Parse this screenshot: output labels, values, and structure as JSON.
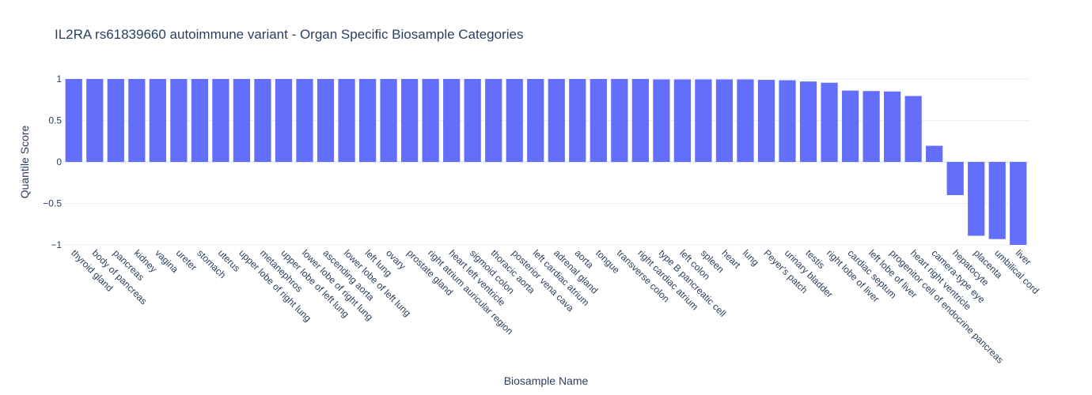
{
  "chart_data": {
    "type": "bar",
    "title": "IL2RA rs61839660 autoimmune variant - Organ Specific Biosample Categories",
    "xlabel": "Biosample Name",
    "ylabel": "Quantile Score",
    "ylim": [
      -1,
      1
    ],
    "yticks": [
      1,
      0.5,
      0,
      -0.5,
      -1
    ],
    "ytick_labels": [
      "1",
      "0.5",
      "0",
      "−0.5",
      "−1"
    ],
    "bar_color": "#636efa",
    "grid": true,
    "categories": [
      "thyroid gland",
      "body of pancreas",
      "pancreas",
      "kidney",
      "vagina",
      "ureter",
      "stomach",
      "uterus",
      "upper lobe of right lung",
      "metanephros",
      "upper lobe of left lung",
      "lower lobe of right lung",
      "ascending aorta",
      "lower lobe of left lung",
      "left lung",
      "ovary",
      "prostate gland",
      "right atrium auricular region",
      "heart left ventricle",
      "sigmoid colon",
      "thoracic aorta",
      "posterior vena cava",
      "left cardiac atrium",
      "adrenal gland",
      "aorta",
      "tongue",
      "transverse colon",
      "right cardiac atrium",
      "type B pancreatic cell",
      "left colon",
      "spleen",
      "heart",
      "lung",
      "Peyer's patch",
      "urinary bladder",
      "testis",
      "right lobe of liver",
      "cardiac septum",
      "left lobe of liver",
      "progenitor cell of endocrine pancreas",
      "heart right ventricle",
      "camera-type eye",
      "hepatocyte",
      "placenta",
      "umbilical cord",
      "liver"
    ],
    "values": [
      1.0,
      1.0,
      1.0,
      1.0,
      1.0,
      1.0,
      1.0,
      1.0,
      1.0,
      1.0,
      1.0,
      1.0,
      1.0,
      1.0,
      1.0,
      1.0,
      1.0,
      1.0,
      1.0,
      1.0,
      1.0,
      1.0,
      1.0,
      1.0,
      1.0,
      1.0,
      1.0,
      1.0,
      0.995,
      0.995,
      0.995,
      0.995,
      0.995,
      0.99,
      0.985,
      0.97,
      0.955,
      0.86,
      0.855,
      0.85,
      0.795,
      0.195,
      -0.4,
      -0.89,
      -0.93,
      -1.0
    ]
  }
}
